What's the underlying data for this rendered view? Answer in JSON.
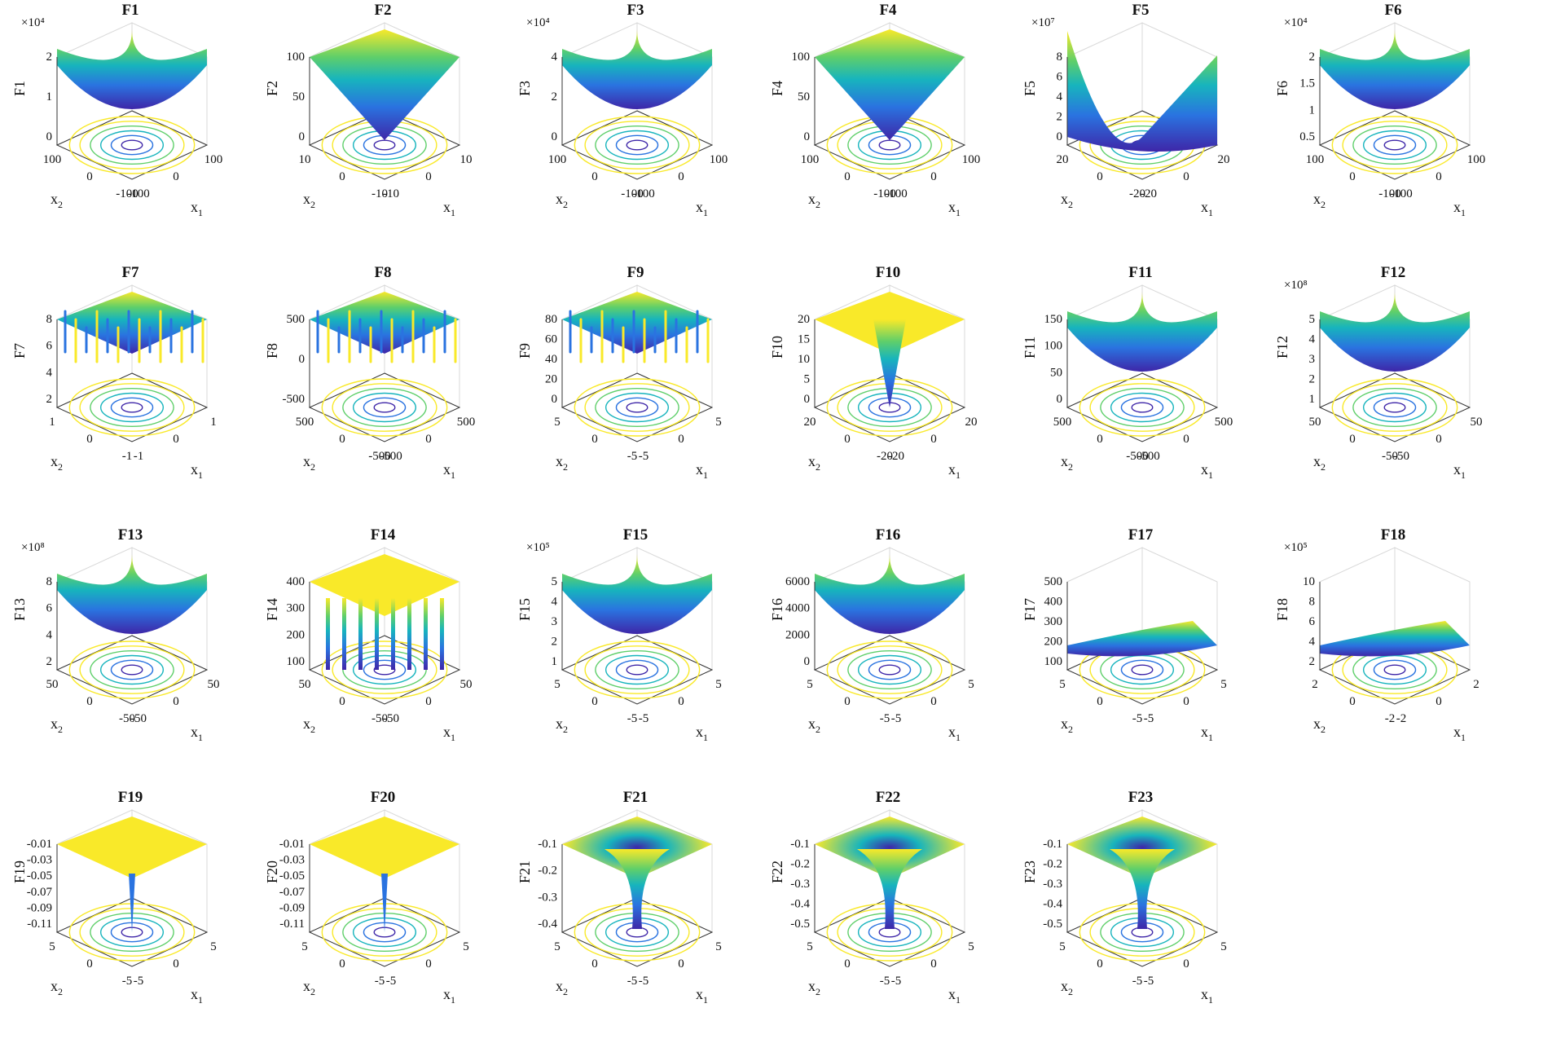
{
  "figure": {
    "axis_labels": {
      "x1": "x",
      "x2": "x",
      "sub1": "1",
      "sub2": "2"
    },
    "colors": {
      "low": "#3e26a8",
      "mid1": "#2a73e0",
      "mid2": "#17b4bd",
      "mid3": "#5fcf6a",
      "high": "#f9e929",
      "axes": "#333333",
      "grid": "#d9d9d9"
    }
  },
  "chart_data": [
    {
      "type": "surface",
      "title": "F1",
      "zlabel": "F1",
      "zscale": "×10⁴",
      "zticks": [
        "0",
        "1",
        "2"
      ],
      "x1ticks": [
        "-100",
        "0",
        "100"
      ],
      "x2ticks": [
        "-100",
        "0",
        "100"
      ],
      "shape": "bowl"
    },
    {
      "type": "surface",
      "title": "F2",
      "zlabel": "F2",
      "zscale": "",
      "zticks": [
        "0",
        "50",
        "100"
      ],
      "x1ticks": [
        "-10",
        "0",
        "10"
      ],
      "x2ticks": [
        "-10",
        "0",
        "10"
      ],
      "shape": "pyramid"
    },
    {
      "type": "surface",
      "title": "F3",
      "zlabel": "F3",
      "zscale": "×10⁴",
      "zticks": [
        "0",
        "2",
        "4"
      ],
      "x1ticks": [
        "-100",
        "0",
        "100"
      ],
      "x2ticks": [
        "-100",
        "0",
        "100"
      ],
      "shape": "bowl"
    },
    {
      "type": "surface",
      "title": "F4",
      "zlabel": "F4",
      "zscale": "",
      "zticks": [
        "0",
        "50",
        "100"
      ],
      "x1ticks": [
        "-100",
        "0",
        "100"
      ],
      "x2ticks": [
        "-100",
        "0",
        "100"
      ],
      "shape": "pyramid"
    },
    {
      "type": "surface",
      "title": "F5",
      "zlabel": "F5",
      "zscale": "×10⁷",
      "zticks": [
        "0",
        "2",
        "4",
        "6",
        "8"
      ],
      "x1ticks": [
        "-20",
        "0",
        "20"
      ],
      "x2ticks": [
        "-20",
        "0",
        "20"
      ],
      "shape": "valley"
    },
    {
      "type": "surface",
      "title": "F6",
      "zlabel": "F6",
      "zscale": "×10⁴",
      "zticks": [
        "0.5",
        "1",
        "1.5",
        "2"
      ],
      "x1ticks": [
        "-100",
        "0",
        "100"
      ],
      "x2ticks": [
        "-100",
        "0",
        "100"
      ],
      "shape": "bowl"
    },
    {
      "type": "surface",
      "title": "F7",
      "zlabel": "F7",
      "zscale": "",
      "zticks": [
        "2",
        "4",
        "6",
        "8"
      ],
      "x1ticks": [
        "-1",
        "0",
        "1"
      ],
      "x2ticks": [
        "-1",
        "0",
        "1"
      ],
      "shape": "noisy"
    },
    {
      "type": "surface",
      "title": "F8",
      "zlabel": "F8",
      "zscale": "",
      "zticks": [
        "-500",
        "0",
        "500"
      ],
      "x1ticks": [
        "-500",
        "0",
        "500"
      ],
      "x2ticks": [
        "-500",
        "0",
        "500"
      ],
      "shape": "wavy"
    },
    {
      "type": "surface",
      "title": "F9",
      "zlabel": "F9",
      "zscale": "",
      "zticks": [
        "0",
        "20",
        "40",
        "60",
        "80"
      ],
      "x1ticks": [
        "-5",
        "0",
        "5"
      ],
      "x2ticks": [
        "-5",
        "0",
        "5"
      ],
      "shape": "wavy"
    },
    {
      "type": "surface",
      "title": "F10",
      "zlabel": "F10",
      "zscale": "",
      "zticks": [
        "0",
        "5",
        "10",
        "15",
        "20"
      ],
      "x1ticks": [
        "-20",
        "0",
        "20"
      ],
      "x2ticks": [
        "-20",
        "0",
        "20"
      ],
      "shape": "plateau"
    },
    {
      "type": "surface",
      "title": "F11",
      "zlabel": "F11",
      "zscale": "",
      "zticks": [
        "0",
        "50",
        "100",
        "150"
      ],
      "x1ticks": [
        "-500",
        "0",
        "500"
      ],
      "x2ticks": [
        "-500",
        "0",
        "500"
      ],
      "shape": "bowl"
    },
    {
      "type": "surface",
      "title": "F12",
      "zlabel": "F12",
      "zscale": "×10⁸",
      "zticks": [
        "1",
        "2",
        "3",
        "4",
        "5"
      ],
      "x1ticks": [
        "-50",
        "0",
        "50"
      ],
      "x2ticks": [
        "-50",
        "0",
        "50"
      ],
      "shape": "bowl"
    },
    {
      "type": "surface",
      "title": "F13",
      "zlabel": "F13",
      "zscale": "×10⁸",
      "zticks": [
        "2",
        "4",
        "6",
        "8"
      ],
      "x1ticks": [
        "-50",
        "0",
        "50"
      ],
      "x2ticks": [
        "-50",
        "0",
        "50"
      ],
      "shape": "bowl"
    },
    {
      "type": "surface",
      "title": "F14",
      "zlabel": "F14",
      "zscale": "",
      "zticks": [
        "100",
        "200",
        "300",
        "400"
      ],
      "x1ticks": [
        "-50",
        "0",
        "50"
      ],
      "x2ticks": [
        "-50",
        "0",
        "50"
      ],
      "shape": "spikes"
    },
    {
      "type": "surface",
      "title": "F15",
      "zlabel": "F15",
      "zscale": "×10⁵",
      "zticks": [
        "1",
        "2",
        "3",
        "4",
        "5"
      ],
      "x1ticks": [
        "-5",
        "0",
        "5"
      ],
      "x2ticks": [
        "-5",
        "0",
        "5"
      ],
      "shape": "bowl"
    },
    {
      "type": "surface",
      "title": "F16",
      "zlabel": "F16",
      "zscale": "",
      "zticks": [
        "0",
        "2000",
        "4000",
        "6000"
      ],
      "x1ticks": [
        "-5",
        "0",
        "5"
      ],
      "x2ticks": [
        "-5",
        "0",
        "5"
      ],
      "shape": "bowl"
    },
    {
      "type": "surface",
      "title": "F17",
      "zlabel": "F17",
      "zscale": "",
      "zticks": [
        "100",
        "200",
        "300",
        "400",
        "500"
      ],
      "x1ticks": [
        "-5",
        "0",
        "5"
      ],
      "x2ticks": [
        "-5",
        "0",
        "5"
      ],
      "shape": "flat"
    },
    {
      "type": "surface",
      "title": "F18",
      "zlabel": "F18",
      "zscale": "×10⁵",
      "zticks": [
        "2",
        "4",
        "6",
        "8",
        "10"
      ],
      "x1ticks": [
        "-2",
        "0",
        "2"
      ],
      "x2ticks": [
        "-2",
        "0",
        "2"
      ],
      "shape": "flat"
    },
    {
      "type": "surface",
      "title": "F19",
      "zlabel": "F19",
      "zscale": "",
      "zticks": [
        "-0.11",
        "-0.09",
        "-0.07",
        "-0.05",
        "-0.03",
        "-0.01"
      ],
      "x1ticks": [
        "-5",
        "0",
        "5"
      ],
      "x2ticks": [
        "-5",
        "0",
        "5"
      ],
      "shape": "needle"
    },
    {
      "type": "surface",
      "title": "F20",
      "zlabel": "F20",
      "zscale": "",
      "zticks": [
        "-0.11",
        "-0.09",
        "-0.07",
        "-0.05",
        "-0.03",
        "-0.01"
      ],
      "x1ticks": [
        "-5",
        "0",
        "5"
      ],
      "x2ticks": [
        "-5",
        "0",
        "5"
      ],
      "shape": "needle"
    },
    {
      "type": "surface",
      "title": "F21",
      "zlabel": "F21",
      "zscale": "",
      "zticks": [
        "-0.4",
        "-0.3",
        "-0.2",
        "-0.1"
      ],
      "x1ticks": [
        "-5",
        "0",
        "5"
      ],
      "x2ticks": [
        "-5",
        "0",
        "5"
      ],
      "shape": "funnel"
    },
    {
      "type": "surface",
      "title": "F22",
      "zlabel": "F22",
      "zscale": "",
      "zticks": [
        "-0.5",
        "-0.4",
        "-0.3",
        "-0.2",
        "-0.1"
      ],
      "x1ticks": [
        "-5",
        "0",
        "5"
      ],
      "x2ticks": [
        "-5",
        "0",
        "5"
      ],
      "shape": "funnel"
    },
    {
      "type": "surface",
      "title": "F23",
      "zlabel": "F23",
      "zscale": "",
      "zticks": [
        "-0.5",
        "-0.4",
        "-0.3",
        "-0.2",
        "-0.1"
      ],
      "x1ticks": [
        "-5",
        "0",
        "5"
      ],
      "x2ticks": [
        "-5",
        "0",
        "5"
      ],
      "shape": "funnel"
    }
  ]
}
